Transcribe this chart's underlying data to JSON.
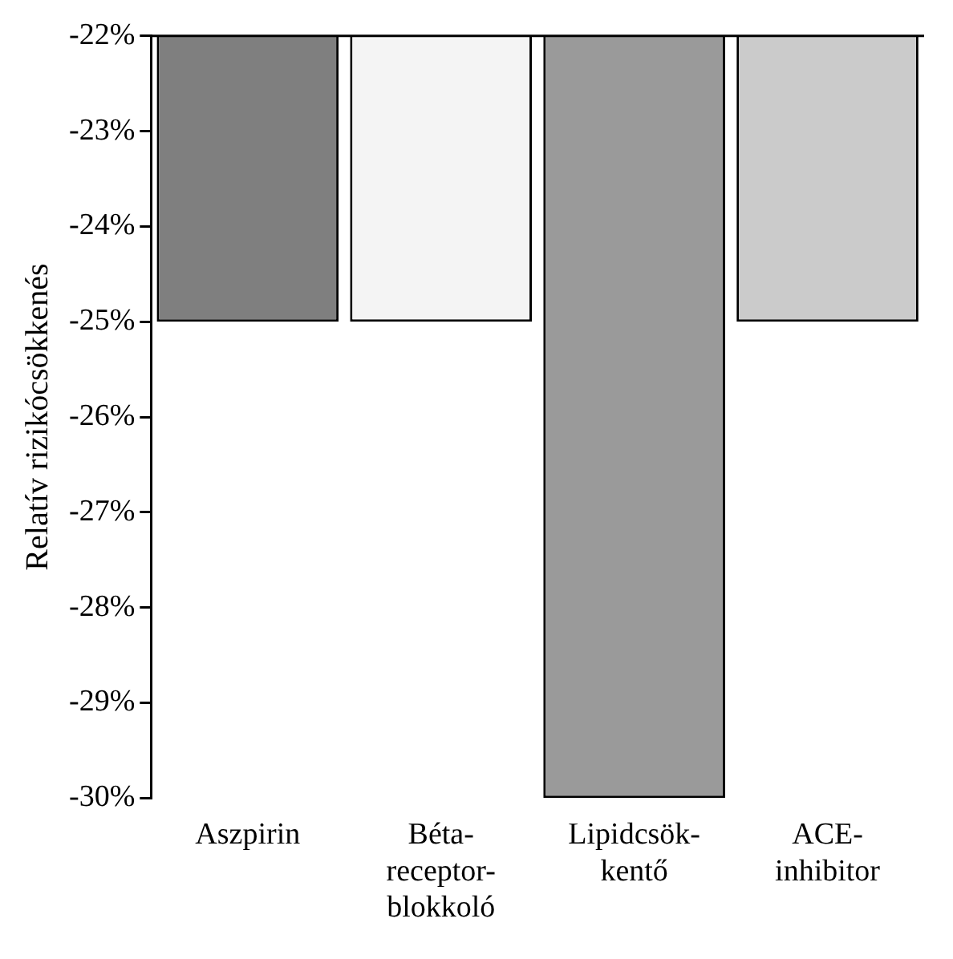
{
  "chart_data": {
    "type": "bar",
    "ylabel": "Relatív rizikócsökkenés",
    "categories": [
      "Aszpirin",
      "Béta-receptor-blokkoló",
      "Lipidcsök-kentő",
      "ACE-inhibitor"
    ],
    "values": [
      -25,
      -25,
      -30,
      -25
    ],
    "colors": [
      "#7f7f7f",
      "#f4f4f4",
      "#9a9a9a",
      "#cbcbcb"
    ],
    "ylim": [
      -30,
      -22
    ],
    "yticks": [
      {
        "value": -22,
        "label": "-22%"
      },
      {
        "value": -23,
        "label": "-23%"
      },
      {
        "value": -24,
        "label": "-24%"
      },
      {
        "value": -25,
        "label": "-25%"
      },
      {
        "value": -26,
        "label": "-26%"
      },
      {
        "value": -27,
        "label": "-27%"
      },
      {
        "value": -28,
        "label": "-28%"
      },
      {
        "value": -29,
        "label": "-29%"
      },
      {
        "value": -30,
        "label": "-30%"
      }
    ],
    "grid": false,
    "legend": false
  }
}
